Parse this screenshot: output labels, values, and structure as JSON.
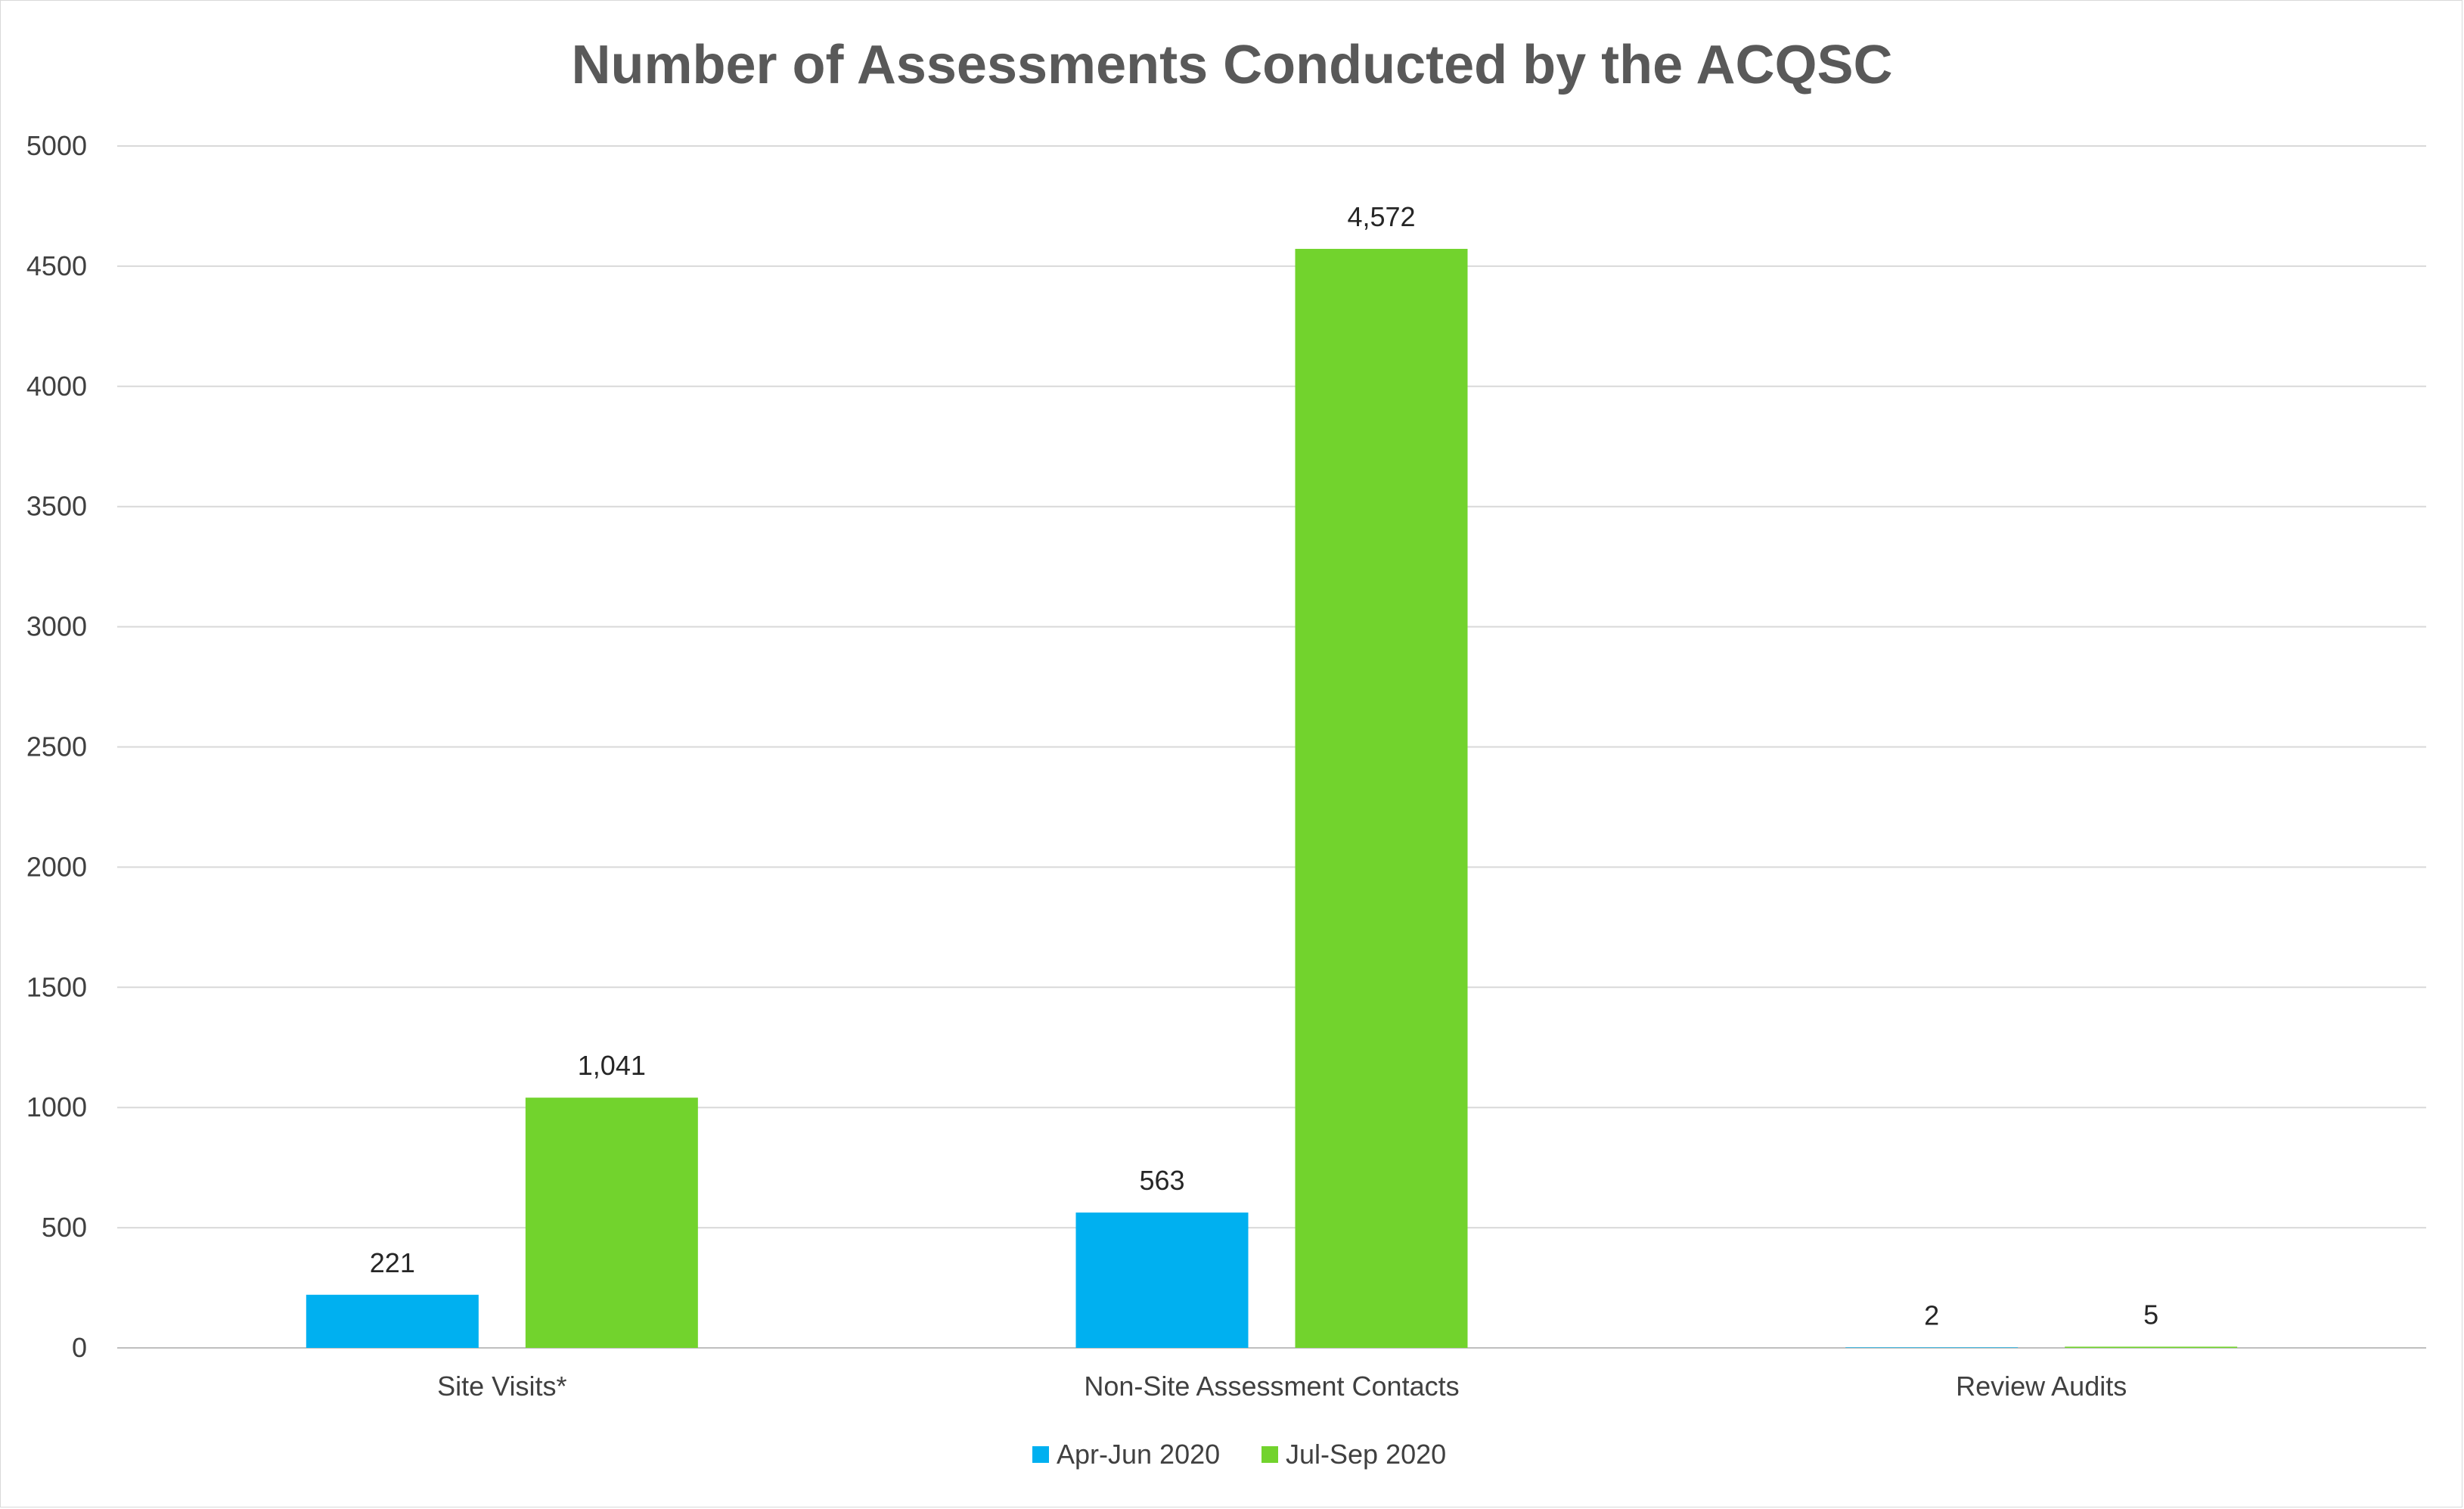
{
  "chart_data": {
    "type": "bar",
    "title": "Number of Assessments Conducted by the ACQSC",
    "categories": [
      "Site Visits*",
      "Non-Site Assessment Contacts",
      "Review Audits"
    ],
    "series": [
      {
        "name": "Apr-Jun 2020",
        "color": "#00b0f0",
        "values": [
          221,
          563,
          2
        ],
        "labels": [
          "221",
          "563",
          "2"
        ]
      },
      {
        "name": "Jul-Sep 2020",
        "color": "#72d32d",
        "values": [
          1041,
          4572,
          5
        ],
        "labels": [
          "1,041",
          "4,572",
          "5"
        ]
      }
    ],
    "xlabel": "",
    "ylabel": "",
    "ylim": [
      0,
      5000
    ],
    "yticks": [
      0,
      500,
      1000,
      1500,
      2000,
      2500,
      3000,
      3500,
      4000,
      4500,
      5000
    ],
    "grid": true,
    "legend": "bottom-center"
  }
}
